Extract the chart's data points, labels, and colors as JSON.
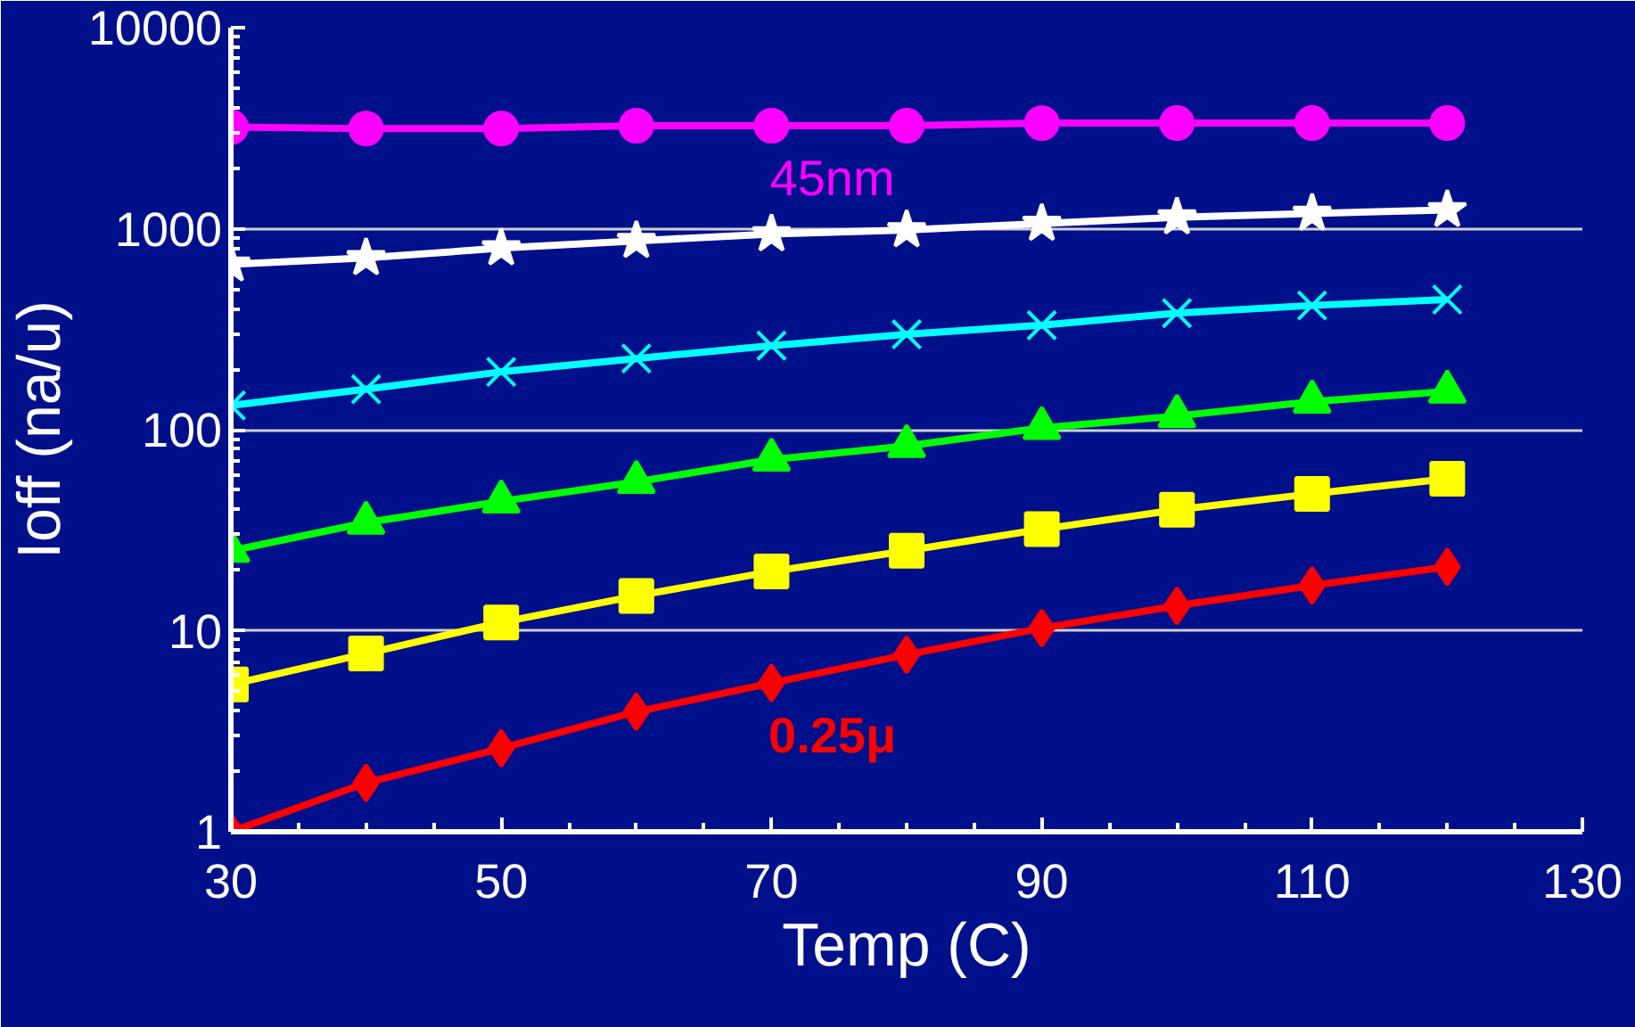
{
  "chart_data": {
    "type": "line",
    "xlabel": "Temp (C)",
    "ylabel": "Ioff (na/u)",
    "x": [
      30,
      40,
      50,
      60,
      70,
      80,
      90,
      100,
      110,
      120
    ],
    "series": [
      {
        "name": "45nm",
        "color": "#ff00ff",
        "marker": "circle",
        "values": [
          3200,
          3150,
          3150,
          3250,
          3250,
          3250,
          3350,
          3350,
          3350,
          3350
        ]
      },
      {
        "color": "#ffffff",
        "marker": "star",
        "values": [
          665,
          715,
          800,
          870,
          940,
          985,
          1060,
          1140,
          1190,
          1240
        ]
      },
      {
        "color": "#00ffff",
        "marker": "cross",
        "values": [
          132,
          159,
          194,
          226,
          262,
          298,
          331,
          380,
          415,
          444
        ]
      },
      {
        "color": "#00ff00",
        "marker": "triangle",
        "values": [
          25,
          34.5,
          44,
          55,
          71,
          83,
          102,
          117,
          138,
          155
        ]
      },
      {
        "color": "#ffff00",
        "marker": "square",
        "values": [
          5.4,
          7.7,
          11,
          14.9,
          19.7,
          25,
          32,
          40,
          48,
          57
        ]
      },
      {
        "name": "0.25μ",
        "color": "#ff0000",
        "marker": "diamond",
        "values": [
          1,
          1.75,
          2.6,
          3.95,
          5.5,
          7.6,
          10.3,
          13.3,
          16.8,
          20.8
        ]
      }
    ],
    "log": "y",
    "xlim": [
      30,
      130
    ],
    "xticks": [
      30,
      50,
      70,
      90,
      110,
      130
    ],
    "ylim": [
      1,
      10000
    ],
    "yticks": [
      1,
      10,
      100,
      1000,
      10000
    ],
    "grid": "y",
    "line_style": "solid"
  }
}
